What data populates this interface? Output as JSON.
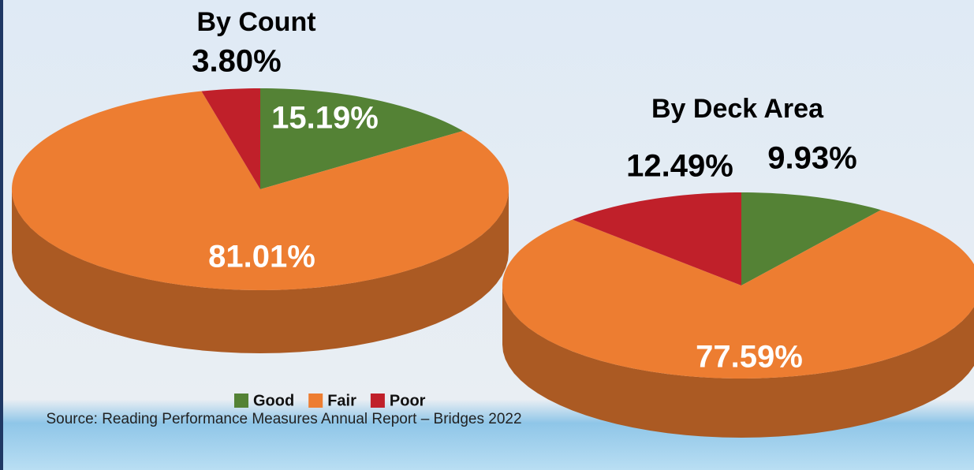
{
  "chart_data": [
    {
      "type": "pie",
      "title": "By Count",
      "categories": [
        "Good",
        "Fair",
        "Poor"
      ],
      "values": [
        15.19,
        81.01,
        3.8
      ],
      "value_labels": [
        "15.19%",
        "81.01%",
        "3.80%"
      ],
      "colors": [
        "#548235",
        "#ED7D31",
        "#C0202A"
      ]
    },
    {
      "type": "pie",
      "title": "By Deck Area",
      "categories": [
        "Good",
        "Fair",
        "Poor"
      ],
      "values": [
        9.93,
        77.59,
        12.49
      ],
      "value_labels": [
        "9.93%",
        "77.59%",
        "12.49%"
      ],
      "colors": [
        "#548235",
        "#ED7D31",
        "#C0202A"
      ]
    }
  ],
  "source": "Source: Reading Performance Measures Annual Report – Bridges 2022"
}
